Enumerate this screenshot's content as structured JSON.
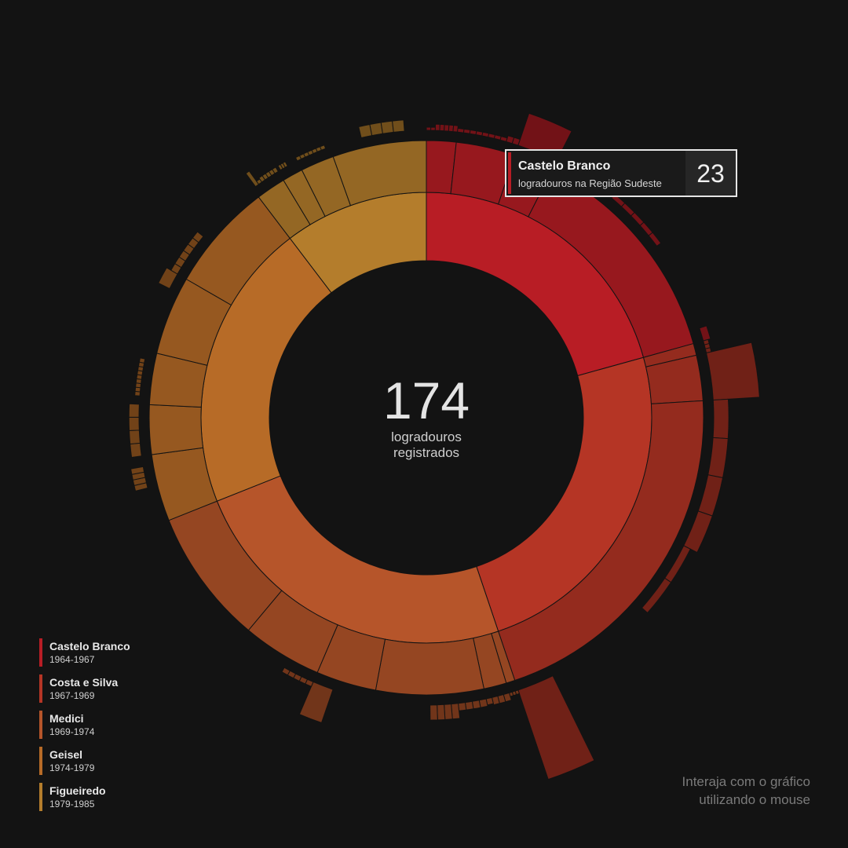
{
  "chart_data": {
    "type": "sunburst",
    "total": 174,
    "center_number": "174",
    "center_label_line1": "logradouros",
    "center_label_line2": "registrados",
    "presidents": [
      {
        "name": "Castelo Branco",
        "years": "1964-1967",
        "value": 36,
        "color": "#b81d25",
        "regions": [
          {
            "value": 3,
            "items": [
              0.25,
              0.25,
              0.5,
              0.5,
              0.5,
              0.5,
              0.5
            ]
          },
          {
            "value": 6,
            "items": [
              0.3,
              0.3,
              0.3,
              0.3,
              0.3,
              0.3,
              0.3,
              0.3,
              0.5,
              0.5
            ]
          },
          {
            "value": 4,
            "items": [
              2.7
            ]
          },
          {
            "value": 23,
            "items": [
              0.4,
              0.4,
              0.4,
              0.4,
              0.4,
              0.4,
              0.4,
              0.4,
              0.4,
              0.4,
              0,
              0,
              0,
              0,
              0,
              0,
              0,
              0.6
            ]
          }
        ]
      },
      {
        "name": "Costa e Silva",
        "years": "1967-1969",
        "value": 42,
        "color": "#b53525",
        "regions": [
          {
            "value": 1.2,
            "items": [
              0.4,
              0.4,
              0.4
            ]
          },
          {
            "value": 4.6,
            "items": [
              3.7
            ]
          },
          {
            "value": 36.2,
            "items": [
              1.2,
              1.2,
              1.2,
              1.2,
              0.6,
              0.6,
              0,
              0,
              0,
              7.5
            ]
          }
        ]
      },
      {
        "name": "Medici",
        "years": "1969-1974",
        "value": 42,
        "color": "#b6552a",
        "regions": [
          {
            "value": 0.9,
            "items": [
              0.3,
              0.3,
              0.3
            ]
          },
          {
            "value": 2.3,
            "items": [
              0.6,
              0.6,
              0.6,
              0.5
            ]
          },
          {
            "value": 10.9,
            "items": [
              0.6,
              0.6,
              0.6,
              0.6,
              1.2,
              1.2,
              1.2,
              1.2,
              0,
              0,
              0,
              0,
              0,
              0,
              0,
              0
            ]
          },
          {
            "value": 6.1,
            "items": [
              0,
              0,
              2.8
            ]
          },
          {
            "value": 8.1,
            "items": [
              0.4,
              0.4,
              0.4,
              0.4,
              0.4,
              0,
              0,
              0,
              0,
              0,
              0,
              0,
              0
            ]
          },
          {
            "value": 13.7,
            "items": []
          }
        ]
      },
      {
        "name": "Geisel",
        "years": "1974-1979",
        "value": 36,
        "color": "#b76b27",
        "regions": [
          {
            "value": 6.8,
            "items": [
              0,
              0,
              0,
              0,
              0,
              0,
              0,
              1.0,
              1.0,
              1.0,
              1.0,
              0,
              0
            ]
          },
          {
            "value": 5.0,
            "items": [
              0.8,
              0.8,
              0.8,
              0.8
            ]
          },
          {
            "value": 5.2,
            "items": [
              0,
              0,
              0.4,
              0.4,
              0.4,
              0.4,
              0.4,
              0.4,
              0.4,
              0.4,
              0.4,
              0,
              0
            ]
          },
          {
            "value": 8.0,
            "items": [
              0,
              0,
              0,
              0,
              1.0
            ]
          },
          {
            "value": 11.0,
            "items": [
              0.6,
              0.6,
              0.6,
              0.6,
              0.6,
              0.6,
              0,
              0,
              0,
              0,
              0,
              0,
              0,
              0,
              0
            ]
          }
        ]
      },
      {
        "name": "Figueiredo",
        "years": "1979-1985",
        "value": 18,
        "color": "#b47d2c",
        "regions": [
          {
            "value": 3.0,
            "items": [
              0,
              1.3,
              0.3,
              0.4,
              0.4,
              0.4,
              0.4,
              0.4
            ]
          },
          {
            "value": 2.1,
            "items": [
              0,
              0.4,
              0.4,
              0.4,
              0,
              0,
              0,
              0
            ]
          },
          {
            "value": 3.4,
            "items": [
              0.3,
              0.3,
              0.3,
              0.3,
              0.3,
              0.3,
              0.3,
              0
            ]
          },
          {
            "value": 9.5,
            "items": [
              0,
              0,
              0,
              0.9,
              0.9,
              0.9,
              0.9,
              0,
              0
            ]
          }
        ]
      }
    ],
    "tooltip": {
      "title": "Castelo Branco",
      "subtitle": "logradouros na Região Sudeste",
      "value": "23",
      "accent": "#b81d25"
    }
  },
  "hint": {
    "line1": "Interaja com o gráfico",
    "line2": "utilizando o mouse"
  }
}
